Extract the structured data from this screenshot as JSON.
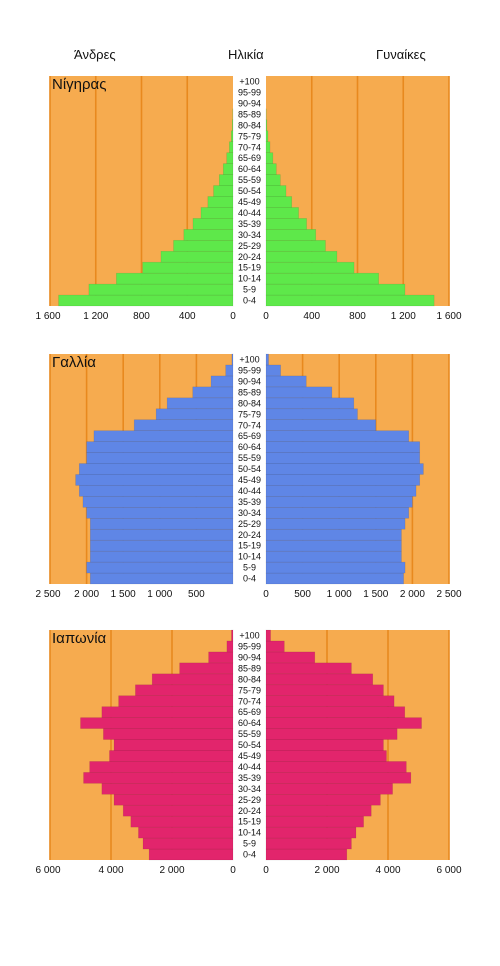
{
  "header": {
    "men": "Άνδρες",
    "age": "Ηλικία",
    "women": "Γυναίκες"
  },
  "age_groups": [
    "0-4",
    "5-9",
    "10-14",
    "15-19",
    "20-24",
    "25-29",
    "30-34",
    "35-39",
    "40-44",
    "45-49",
    "50-54",
    "55-59",
    "60-64",
    "65-69",
    "70-74",
    "75-79",
    "80-84",
    "85-89",
    "90-94",
    "95-99",
    "+100"
  ],
  "colors": {
    "background": "#f6ab4f",
    "gridline": "#e8891e",
    "niger": "#5ee84a",
    "france": "#5f86e6",
    "japan": "#e2256c"
  },
  "chart_data": [
    {
      "type": "bar",
      "title": "Νίγηρας",
      "orientation": "population-pyramid",
      "xlim": [
        0,
        1600
      ],
      "xticks": [
        "1 600",
        "1 200",
        "800",
        "400",
        "0"
      ],
      "xticks_right": [
        "0",
        "400",
        "800",
        "1 200",
        "1 600"
      ],
      "categories": [
        "0-4",
        "5-9",
        "10-14",
        "15-19",
        "20-24",
        "25-29",
        "30-34",
        "35-39",
        "40-44",
        "45-49",
        "50-54",
        "55-59",
        "60-64",
        "65-69",
        "70-74",
        "75-79",
        "80-84",
        "85-89",
        "90-94",
        "95-99",
        "+100"
      ],
      "series": [
        {
          "name": "Άνδρες",
          "values": [
            1525,
            1260,
            1020,
            790,
            630,
            520,
            430,
            350,
            280,
            220,
            170,
            120,
            85,
            55,
            32,
            15,
            6,
            2,
            0,
            0,
            0
          ]
        },
        {
          "name": "Γυναίκες",
          "values": [
            1470,
            1215,
            985,
            770,
            620,
            520,
            435,
            355,
            285,
            225,
            175,
            125,
            90,
            60,
            35,
            17,
            7,
            2,
            0,
            0,
            0
          ]
        }
      ]
    },
    {
      "type": "bar",
      "title": "Γαλλία",
      "orientation": "population-pyramid",
      "xlim": [
        0,
        2500
      ],
      "xticks": [
        "2 500",
        "2 000",
        "1 500",
        "1 000",
        "500"
      ],
      "xticks_right": [
        "0",
        "500",
        "1 000",
        "1 500",
        "2 000",
        "2 500"
      ],
      "categories": [
        "0-4",
        "5-9",
        "10-14",
        "15-19",
        "20-24",
        "25-29",
        "30-34",
        "35-39",
        "40-44",
        "45-49",
        "50-54",
        "55-59",
        "60-64",
        "65-69",
        "70-74",
        "75-79",
        "80-84",
        "85-89",
        "90-94",
        "95-99",
        "+100"
      ],
      "series": [
        {
          "name": "Άνδρες",
          "values": [
            1950,
            2000,
            1950,
            1950,
            1950,
            1950,
            2000,
            2050,
            2100,
            2150,
            2100,
            2000,
            2000,
            1900,
            1350,
            1050,
            900,
            550,
            300,
            100,
            15
          ]
        },
        {
          "name": "Γυναίκες",
          "values": [
            1880,
            1900,
            1850,
            1850,
            1850,
            1900,
            1950,
            2000,
            2050,
            2100,
            2150,
            2100,
            2100,
            1950,
            1500,
            1250,
            1200,
            900,
            550,
            200,
            35
          ]
        }
      ]
    },
    {
      "type": "bar",
      "title": "Ιαπωνία",
      "orientation": "population-pyramid",
      "xlim": [
        0,
        6000
      ],
      "xticks": [
        "6 000",
        "4 000",
        "2 000",
        "0"
      ],
      "xticks_right": [
        "0",
        "2 000",
        "4 000",
        "6 000"
      ],
      "categories": [
        "0-4",
        "5-9",
        "10-14",
        "15-19",
        "20-24",
        "25-29",
        "30-34",
        "35-39",
        "40-44",
        "45-49",
        "50-54",
        "55-59",
        "60-64",
        "65-69",
        "70-74",
        "75-79",
        "80-84",
        "85-89",
        "90-94",
        "95-99",
        "+100"
      ],
      "series": [
        {
          "name": "Άνδρες",
          "values": [
            2750,
            2950,
            3100,
            3350,
            3600,
            3900,
            4300,
            4900,
            4700,
            4050,
            3900,
            4250,
            5000,
            4300,
            3750,
            3200,
            2650,
            1750,
            800,
            200,
            50
          ]
        },
        {
          "name": "Γυναίκες",
          "values": [
            2650,
            2800,
            2950,
            3200,
            3450,
            3750,
            4150,
            4750,
            4600,
            3950,
            3850,
            4300,
            5100,
            4550,
            4200,
            3850,
            3500,
            2800,
            1600,
            600,
            150
          ]
        }
      ]
    }
  ]
}
